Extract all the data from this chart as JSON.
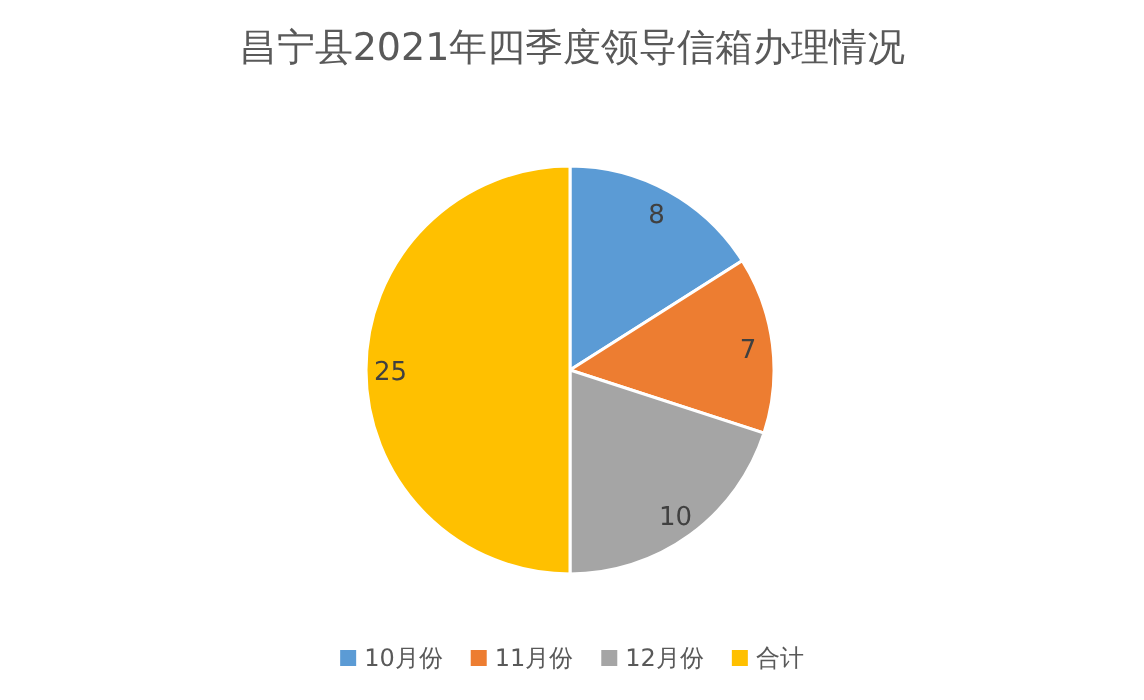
{
  "chart_data": {
    "type": "pie",
    "title": "昌宁县2021年四季度领导信箱办理情况",
    "categories": [
      "10月份",
      "11月份",
      "12月份",
      "合计"
    ],
    "values": [
      8,
      7,
      10,
      25
    ],
    "colors": [
      "#5b9bd5",
      "#ed7d31",
      "#a5a5a5",
      "#ffc000"
    ],
    "data_labels": true,
    "legend": "bottom"
  }
}
